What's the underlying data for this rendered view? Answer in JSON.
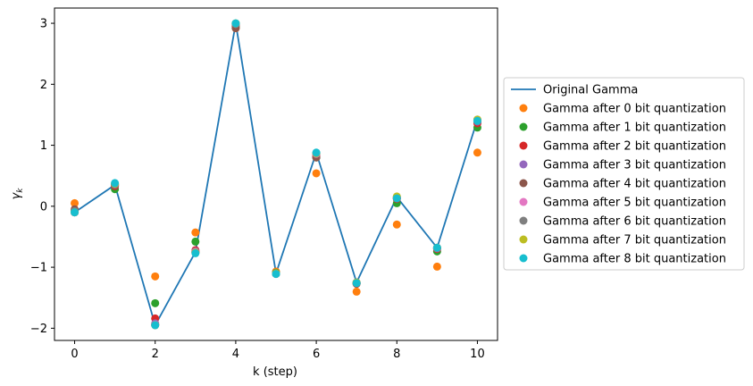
{
  "chart_data": {
    "type": "line",
    "title": "",
    "xlabel": "k (step)",
    "ylabel": "γ",
    "ylabel_subscript": "k",
    "xlim": [
      -0.5,
      10.5
    ],
    "ylim": [
      -2.2,
      3.25
    ],
    "xticks": [
      0,
      2,
      4,
      6,
      8,
      10
    ],
    "yticks": [
      -2,
      -1,
      0,
      1,
      2,
      3
    ],
    "grid": false,
    "legend": "outside-right",
    "x": [
      0,
      1,
      2,
      3,
      4,
      5,
      6,
      7,
      8,
      9,
      10
    ],
    "series": [
      {
        "name": "Original Gamma",
        "kind": "line",
        "color": "#1f77b4",
        "values": [
          -0.1,
          0.35,
          -1.95,
          -0.75,
          3.0,
          -1.1,
          0.88,
          -1.25,
          0.15,
          -0.68,
          1.42
        ]
      },
      {
        "name": "Gamma after 0 bit quantization",
        "kind": "marker",
        "color": "#ff7f0e",
        "values": [
          0.05,
          0.34,
          -1.15,
          -0.43,
          2.92,
          -1.07,
          0.54,
          -1.4,
          -0.3,
          -0.99,
          0.88
        ]
      },
      {
        "name": "Gamma after 1 bit quantization",
        "kind": "marker",
        "color": "#2ca02c",
        "values": [
          -0.08,
          0.28,
          -1.59,
          -0.58,
          2.95,
          -1.09,
          0.8,
          -1.27,
          0.05,
          -0.74,
          1.29
        ]
      },
      {
        "name": "Gamma after 2 bit quantization",
        "kind": "marker",
        "color": "#d62728",
        "values": [
          -0.1,
          0.33,
          -1.84,
          -0.72,
          2.97,
          -1.1,
          0.82,
          -1.27,
          0.12,
          -0.7,
          1.36
        ]
      },
      {
        "name": "Gamma after 3 bit quantization",
        "kind": "marker",
        "color": "#9467bd",
        "values": [
          -0.1,
          0.35,
          -1.92,
          -0.74,
          2.98,
          -1.1,
          0.85,
          -1.26,
          0.14,
          -0.69,
          1.39
        ]
      },
      {
        "name": "Gamma after 4 bit quantization",
        "kind": "marker",
        "color": "#8c564b",
        "values": [
          -0.05,
          0.35,
          -1.94,
          -0.75,
          2.92,
          -1.11,
          0.8,
          -1.26,
          0.13,
          -0.68,
          1.4
        ]
      },
      {
        "name": "Gamma after 5 bit quantization",
        "kind": "marker",
        "color": "#e377c2",
        "values": [
          -0.1,
          0.36,
          -1.94,
          -0.75,
          2.99,
          -1.1,
          0.86,
          -1.25,
          0.14,
          -0.68,
          1.41
        ]
      },
      {
        "name": "Gamma after 6 bit quantization",
        "kind": "marker",
        "color": "#7f7f7f",
        "values": [
          -0.08,
          0.36,
          -1.95,
          -0.76,
          2.99,
          -1.1,
          0.87,
          -1.25,
          0.15,
          -0.68,
          1.42
        ]
      },
      {
        "name": "Gamma after 7 bit quantization",
        "kind": "marker",
        "color": "#bcbd22",
        "values": [
          -0.1,
          0.37,
          -1.95,
          -0.76,
          3.0,
          -1.1,
          0.87,
          -1.25,
          0.16,
          -0.68,
          1.42
        ]
      },
      {
        "name": "Gamma after 8 bit quantization",
        "kind": "marker",
        "color": "#17becf",
        "values": [
          -0.1,
          0.38,
          -1.95,
          -0.77,
          3.0,
          -1.11,
          0.88,
          -1.26,
          0.13,
          -0.68,
          1.4
        ]
      }
    ]
  }
}
